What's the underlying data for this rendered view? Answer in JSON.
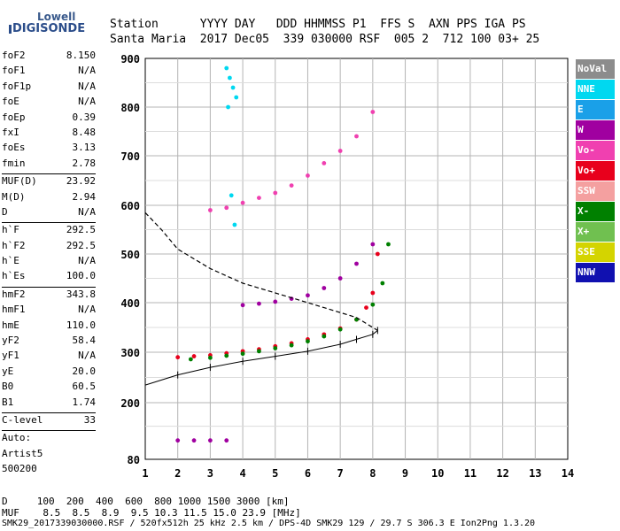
{
  "logo": {
    "brand": "Lowell",
    "product": "DIGISONDE"
  },
  "header": {
    "row1": "Station      YYYY DAY   DDD HHMMSS P1  FFS S  AXN PPS IGA PS",
    "row2": "Santa Maria  2017 Dec05  339 030000 RSF  005 2  712 100 03+ 25"
  },
  "params": [
    {
      "k": "foF2",
      "v": "8.150"
    },
    {
      "k": "foF1",
      "v": "N/A"
    },
    {
      "k": "foF1p",
      "v": "N/A"
    },
    {
      "k": "foE",
      "v": "N/A"
    },
    {
      "k": "foEp",
      "v": "0.39"
    },
    {
      "k": "fxI",
      "v": "8.48"
    },
    {
      "k": "foEs",
      "v": "3.13"
    },
    {
      "k": "fmin",
      "v": "2.78"
    },
    {
      "sep": true
    },
    {
      "k": "MUF(D)",
      "v": "23.92"
    },
    {
      "k": "M(D)",
      "v": "2.94"
    },
    {
      "k": "D",
      "v": "N/A"
    },
    {
      "sep": true
    },
    {
      "k": "h`F",
      "v": "292.5"
    },
    {
      "k": "h`F2",
      "v": "292.5"
    },
    {
      "k": "h`E",
      "v": "N/A"
    },
    {
      "k": "h`Es",
      "v": "100.0"
    },
    {
      "sep": true
    },
    {
      "k": "hmF2",
      "v": "343.8"
    },
    {
      "k": "hmF1",
      "v": "N/A"
    },
    {
      "k": "hmE",
      "v": "110.0"
    },
    {
      "k": "yF2",
      "v": "58.4"
    },
    {
      "k": "yF1",
      "v": "N/A"
    },
    {
      "k": "yE",
      "v": "20.0"
    },
    {
      "k": "B0",
      "v": "60.5"
    },
    {
      "k": "B1",
      "v": "1.74"
    },
    {
      "sep": true
    },
    {
      "k": "C-level",
      "v": "33"
    },
    {
      "sep": true
    },
    {
      "k": "Auto:",
      "v": ""
    },
    {
      "k": "Artist5",
      "v": ""
    },
    {
      "k": "500200",
      "v": ""
    }
  ],
  "legend": [
    {
      "label": "NoVal",
      "color": "#8c8c8c"
    },
    {
      "label": "NNE",
      "color": "#00d8f0"
    },
    {
      "label": "E",
      "color": "#1aa0e8"
    },
    {
      "label": "W",
      "color": "#a000a0"
    },
    {
      "label": "Vo-",
      "color": "#f040b0"
    },
    {
      "label": "Vo+",
      "color": "#e8001c"
    },
    {
      "label": "SSW",
      "color": "#f4a0a0"
    },
    {
      "label": "X-",
      "color": "#008000"
    },
    {
      "label": "X+",
      "color": "#70c050"
    },
    {
      "label": "SSE",
      "color": "#d4d400"
    },
    {
      "label": "NNW",
      "color": "#1010b0"
    }
  ],
  "footer": {
    "d_row": "D     100  200  400  600  800 1000 1500 3000 [km]",
    "muf_row": "MUF    8.5  8.5  8.9  9.5 10.3 11.5 15.0 23.9 [MHz]",
    "info_row": "SMK29_2017339030000.RSF / 520fx512h 25 kHz 2.5 km / DPS-4D SMK29 129 / 29.7 S 306.3 E Ion2Png 1.3.20"
  },
  "chart_data": {
    "type": "scatter",
    "x_ticks": [
      "1",
      "2",
      "3",
      "4",
      "5",
      "6",
      "7",
      "8",
      "9",
      "10",
      "11",
      "12",
      "13",
      "14"
    ],
    "y_ticks": [
      "80",
      "200",
      "300",
      "400",
      "500",
      "600",
      "700",
      "800",
      "900"
    ],
    "xlim": [
      1,
      14
    ],
    "ylim": [
      80,
      900
    ],
    "y_scale_nonlinear": true,
    "grid": true,
    "legend_placement": "right",
    "series": [
      {
        "name": "Vo+",
        "color": "#e8001c",
        "x": [
          2.0,
          2.5,
          3.0,
          3.5,
          4.0,
          4.5,
          5.0,
          5.5,
          6.0,
          6.5,
          7.0,
          7.5,
          7.8,
          8.0,
          8.15
        ],
        "y": [
          290,
          292,
          294,
          298,
          302,
          306,
          312,
          318,
          326,
          336,
          348,
          366,
          390,
          420,
          500
        ]
      },
      {
        "name": "X-",
        "color": "#008000",
        "x": [
          2.4,
          3.0,
          3.5,
          4.0,
          4.5,
          5.0,
          5.5,
          6.0,
          6.5,
          7.0,
          7.5,
          8.0,
          8.3,
          8.48
        ],
        "y": [
          286,
          289,
          293,
          297,
          302,
          308,
          314,
          322,
          332,
          346,
          366,
          396,
          440,
          520
        ]
      },
      {
        "name": "NNE",
        "color": "#00d8f0",
        "x": [
          3.5,
          3.6,
          3.7,
          3.8,
          3.55,
          3.65,
          3.75
        ],
        "y": [
          880,
          860,
          840,
          820,
          800,
          620,
          560
        ]
      },
      {
        "name": "W",
        "color": "#a000a0",
        "x": [
          2.0,
          2.5,
          3.0,
          3.5,
          4.0,
          4.5,
          5.0,
          5.5,
          6.0,
          6.5,
          7.0,
          7.5,
          8.0
        ],
        "y": [
          120,
          120,
          120,
          120,
          395,
          398,
          402,
          408,
          415,
          430,
          450,
          480,
          520
        ]
      },
      {
        "name": "Vo-",
        "color": "#f040b0",
        "x": [
          3.0,
          3.5,
          4.0,
          4.5,
          5.0,
          5.5,
          6.0,
          6.5,
          7.0,
          7.5,
          8.0
        ],
        "y": [
          590,
          595,
          605,
          615,
          625,
          640,
          660,
          685,
          710,
          740,
          790
        ]
      }
    ],
    "profile_curve": {
      "x": [
        1.0,
        1.5,
        2.0,
        3.0,
        4.0,
        5.0,
        6.0,
        6.5,
        7.0,
        7.5,
        8.0,
        8.15
      ],
      "y": [
        585,
        550,
        510,
        470,
        440,
        420,
        400,
        390,
        380,
        370,
        350,
        344
      ]
    },
    "virtual_height_curve": {
      "x": [
        1.0,
        2.0,
        3.0,
        4.0,
        5.0,
        6.0,
        7.0,
        7.5,
        8.0,
        8.15
      ],
      "y": [
        235,
        255,
        270,
        282,
        292,
        302,
        316,
        326,
        336,
        344
      ]
    }
  }
}
